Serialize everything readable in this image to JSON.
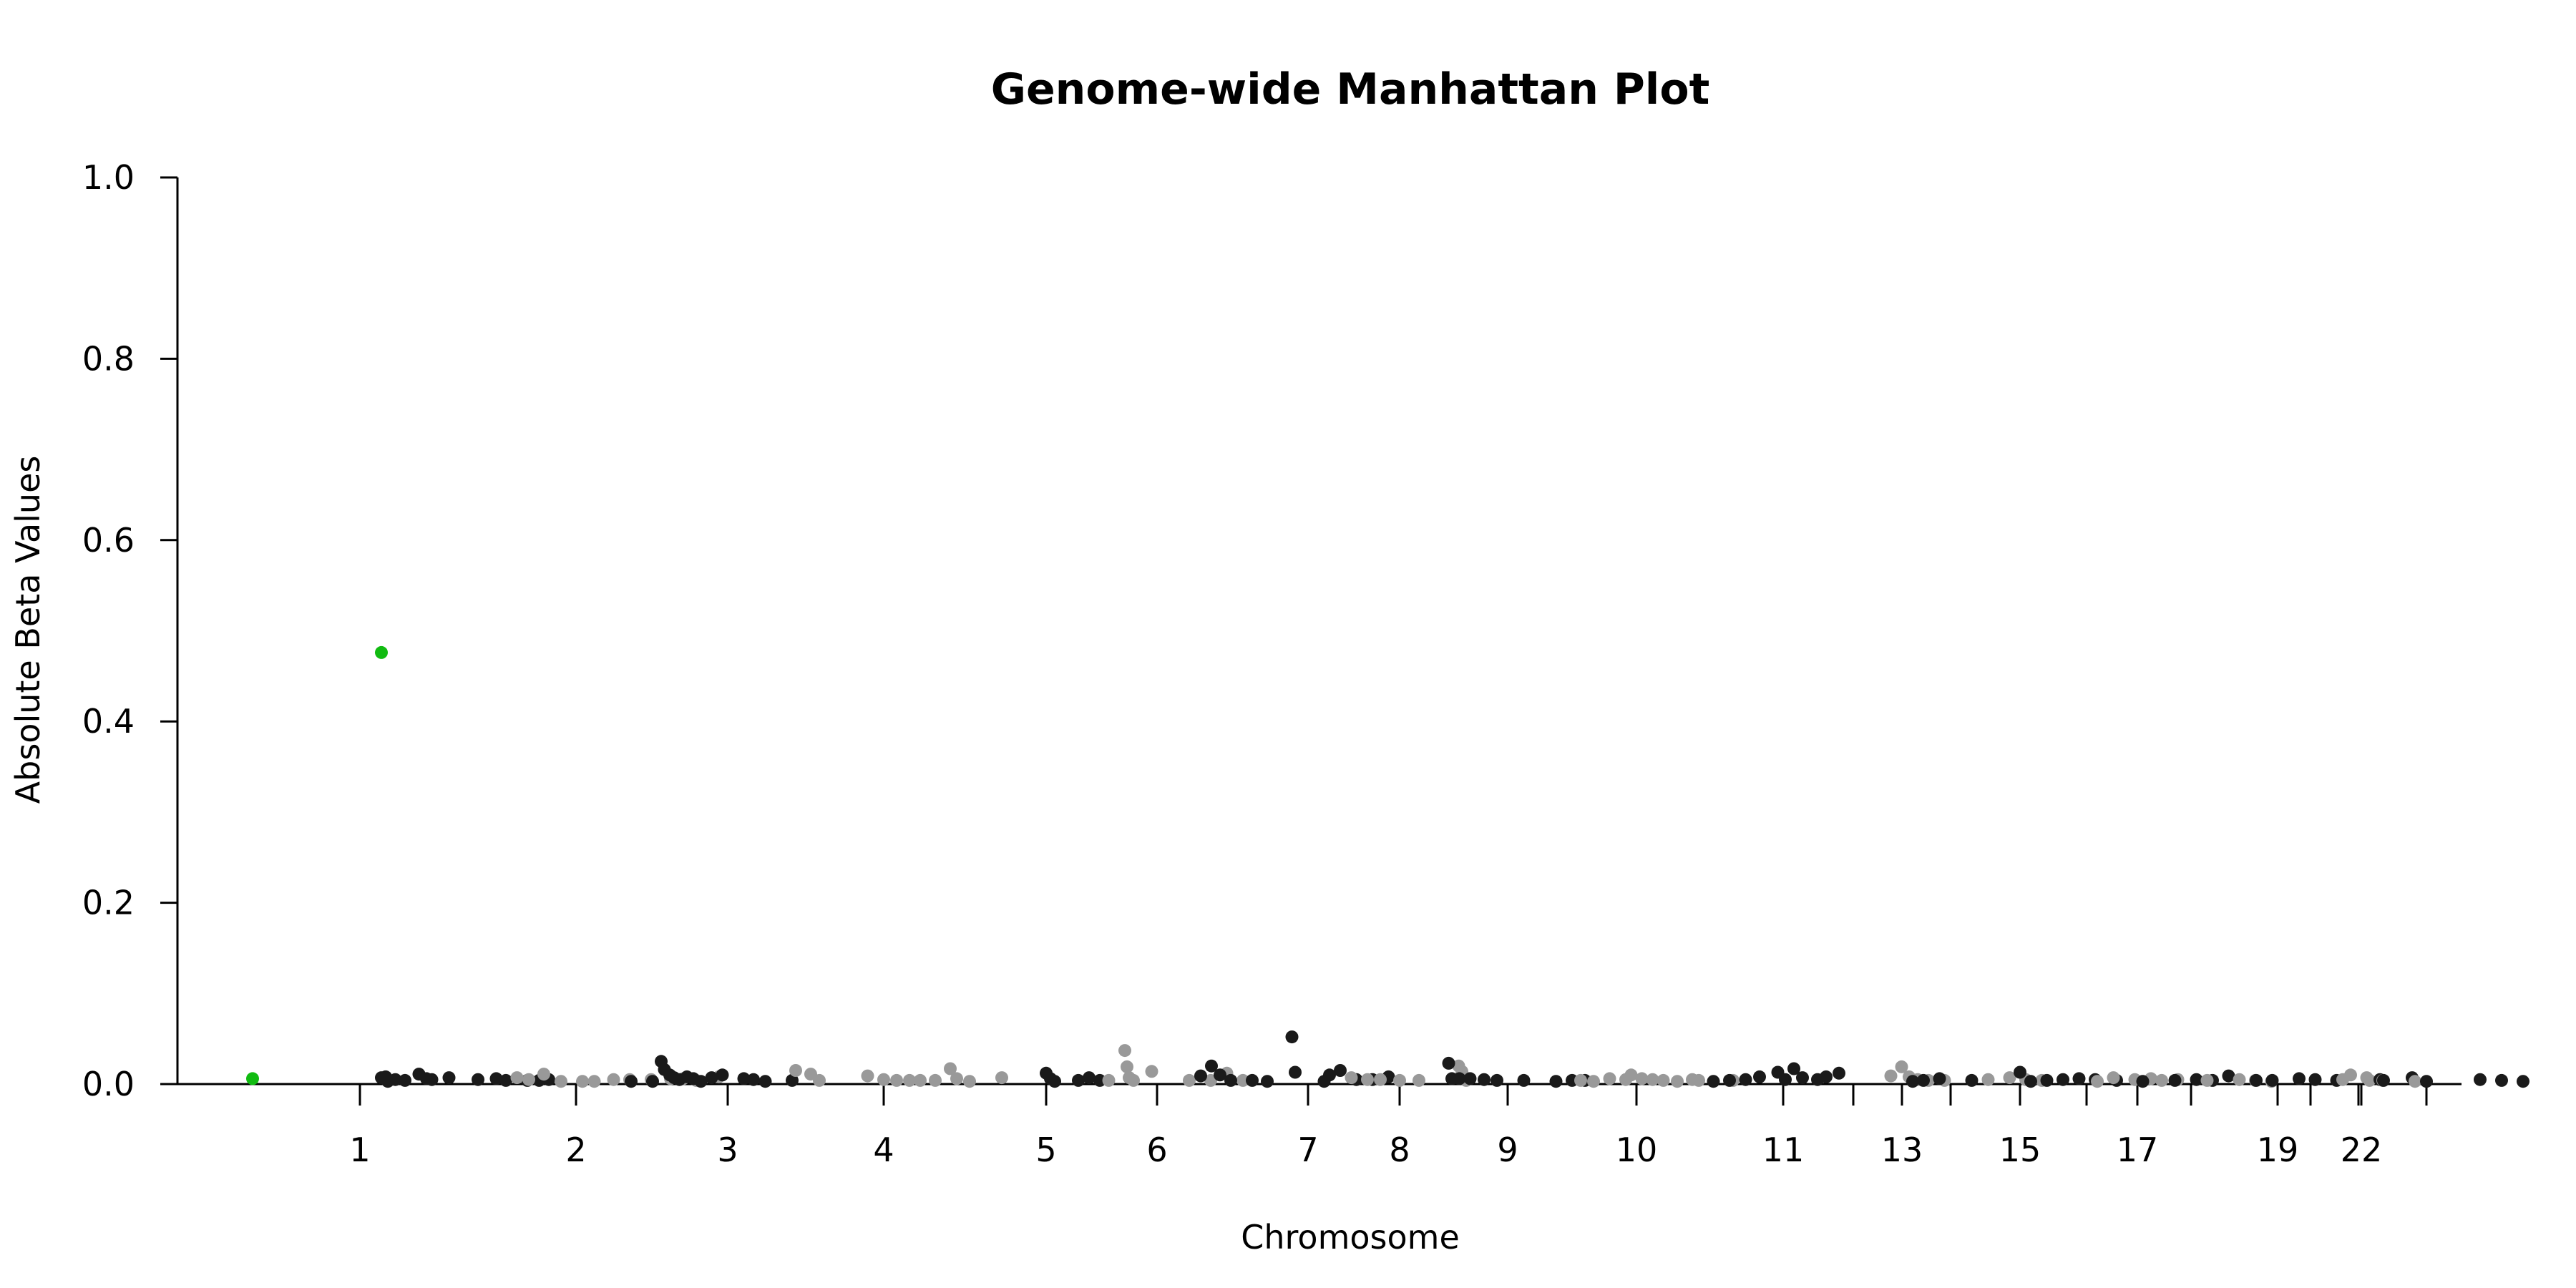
{
  "chart_data": {
    "type": "scatter",
    "title": "Genome-wide Manhattan Plot",
    "xlabel": "Chromosome",
    "ylabel": "Absolute Beta Values",
    "ylim": [
      0,
      1.0
    ],
    "y_ticks": [
      "0.0",
      "0.2",
      "0.4",
      "0.6",
      "0.8",
      "1.0"
    ],
    "x_tick_labels": [
      "1",
      "2",
      "3",
      "4",
      "5",
      "6",
      "7",
      "8",
      "9",
      "10",
      "11",
      "13",
      "15",
      "17",
      "19",
      "22"
    ],
    "x_ticks": [
      {
        "chr": "1",
        "label": "1"
      },
      {
        "chr": "2",
        "label": "2"
      },
      {
        "chr": "3",
        "label": "3"
      },
      {
        "chr": "4",
        "label": "4"
      },
      {
        "chr": "5",
        "label": "5"
      },
      {
        "chr": "6",
        "label": "6"
      },
      {
        "chr": "7",
        "label": "7"
      },
      {
        "chr": "8",
        "label": "8"
      },
      {
        "chr": "9",
        "label": "9"
      },
      {
        "chr": "10",
        "label": "10"
      },
      {
        "chr": "11",
        "label": "11"
      },
      {
        "chr": "12",
        "label": ""
      },
      {
        "chr": "13",
        "label": "13"
      },
      {
        "chr": "14",
        "label": ""
      },
      {
        "chr": "15",
        "label": "15"
      },
      {
        "chr": "16",
        "label": ""
      },
      {
        "chr": "17",
        "label": "17"
      },
      {
        "chr": "18",
        "label": ""
      },
      {
        "chr": "19",
        "label": "19"
      },
      {
        "chr": "20",
        "label": ""
      },
      {
        "chr": "21",
        "label": ""
      },
      {
        "chr": "22",
        "label": "22"
      },
      {
        "chr": "X",
        "label": ""
      }
    ],
    "colors": {
      "odd": "#1a1a1a",
      "even": "#999999",
      "highlight": "#11bb11"
    },
    "grid": false,
    "legend": "none",
    "series": [
      {
        "chr": "1",
        "points": [
          [
            0.2,
            0.476
          ],
          [
            0.2,
            0.007
          ],
          [
            0.24,
            0.008
          ],
          [
            0.26,
            0.003
          ],
          [
            0.33,
            0.005
          ],
          [
            0.42,
            0.004
          ],
          [
            0.55,
            0.011
          ],
          [
            0.62,
            0.006
          ],
          [
            0.67,
            0.005
          ]
        ]
      },
      {
        "chr": "1b",
        "points": [
          [
            0.83,
            0.007
          ],
          [
            1.1,
            0.005
          ],
          [
            1.27,
            0.006
          ],
          [
            1.36,
            0.004
          ],
          [
            1.56,
            0.004
          ],
          [
            1.67,
            0.004
          ],
          [
            1.76,
            0.005
          ]
        ]
      },
      {
        "chr": "2",
        "points": [
          [
            -0.55,
            0.007
          ],
          [
            -0.44,
            0.005
          ],
          [
            -0.3,
            0.011
          ],
          [
            -0.14,
            0.003
          ],
          [
            0.06,
            0.003
          ],
          [
            0.17,
            0.003
          ],
          [
            0.35,
            0.005
          ],
          [
            0.5,
            0.005
          ],
          [
            0.7,
            0.005
          ],
          [
            0.88,
            0.006
          ],
          [
            1.0,
            0.006
          ],
          [
            1.12,
            0.004
          ],
          [
            1.33,
            0.008
          ]
        ]
      },
      {
        "chr": "3",
        "points": [
          [
            -0.9,
            0.003
          ],
          [
            -0.7,
            0.003
          ],
          [
            -0.62,
            0.025
          ],
          [
            -0.59,
            0.016
          ],
          [
            -0.54,
            0.01
          ],
          [
            -0.5,
            0.007
          ],
          [
            -0.45,
            0.005
          ],
          [
            -0.38,
            0.008
          ],
          [
            -0.32,
            0.006
          ],
          [
            -0.25,
            0.003
          ],
          [
            -0.15,
            0.007
          ],
          [
            -0.05,
            0.01
          ],
          [
            0.15,
            0.006
          ],
          [
            0.24,
            0.005
          ],
          [
            0.35,
            0.003
          ],
          [
            0.6,
            0.004
          ]
        ]
      },
      {
        "chr": "4",
        "points": [
          [
            -0.82,
            0.015
          ],
          [
            -0.68,
            0.011
          ],
          [
            -0.6,
            0.004
          ],
          [
            -0.15,
            0.009
          ],
          [
            0.0,
            0.005
          ],
          [
            0.12,
            0.004
          ],
          [
            0.24,
            0.004
          ],
          [
            0.34,
            0.004
          ],
          [
            0.48,
            0.004
          ],
          [
            0.62,
            0.017
          ],
          [
            0.68,
            0.006
          ],
          [
            0.8,
            0.003
          ],
          [
            1.1,
            0.007
          ]
        ]
      },
      {
        "chr": "5",
        "points": [
          [
            0.0,
            0.012
          ],
          [
            0.04,
            0.006
          ],
          [
            0.08,
            0.003
          ],
          [
            0.3,
            0.004
          ],
          [
            0.4,
            0.007
          ],
          [
            0.5,
            0.004
          ]
        ]
      },
      {
        "chr": "6",
        "points": [
          [
            -0.45,
            0.004
          ],
          [
            -0.3,
            0.037
          ],
          [
            -0.28,
            0.019
          ],
          [
            -0.26,
            0.007
          ],
          [
            -0.22,
            0.004
          ],
          [
            -0.05,
            0.014
          ],
          [
            0.3,
            0.004
          ],
          [
            0.5,
            0.004
          ],
          [
            0.65,
            0.012
          ],
          [
            0.8,
            0.004
          ]
        ]
      },
      {
        "chr": "7",
        "points": [
          [
            -1.0,
            0.009
          ],
          [
            -0.9,
            0.02
          ],
          [
            -0.82,
            0.01
          ],
          [
            -0.72,
            0.004
          ],
          [
            -0.52,
            0.004
          ],
          [
            -0.38,
            0.003
          ],
          [
            -0.15,
            0.052
          ],
          [
            -0.12,
            0.013
          ],
          [
            0.15,
            0.003
          ],
          [
            0.2,
            0.01
          ],
          [
            0.3,
            0.015
          ],
          [
            0.45,
            0.005
          ],
          [
            0.6,
            0.005
          ],
          [
            0.75,
            0.008
          ]
        ]
      },
      {
        "chr": "8",
        "points": [
          [
            -0.45,
            0.007
          ],
          [
            -0.3,
            0.005
          ],
          [
            -0.18,
            0.005
          ],
          [
            0.0,
            0.004
          ],
          [
            0.18,
            0.004
          ],
          [
            0.55,
            0.02
          ],
          [
            0.58,
            0.014
          ],
          [
            0.6,
            0.008
          ],
          [
            0.62,
            0.004
          ]
        ]
      },
      {
        "chr": "9",
        "points": [
          [
            -0.55,
            0.023
          ],
          [
            -0.52,
            0.006
          ],
          [
            -0.45,
            0.006
          ],
          [
            -0.35,
            0.006
          ],
          [
            -0.22,
            0.005
          ],
          [
            -0.1,
            0.004
          ],
          [
            0.15,
            0.004
          ],
          [
            0.45,
            0.003
          ],
          [
            0.6,
            0.004
          ],
          [
            0.72,
            0.004
          ]
        ]
      },
      {
        "chr": "10",
        "points": [
          [
            -0.52,
            0.004
          ],
          [
            -0.4,
            0.003
          ],
          [
            -0.25,
            0.006
          ],
          [
            -0.1,
            0.005
          ],
          [
            -0.05,
            0.01
          ],
          [
            0.05,
            0.006
          ],
          [
            0.15,
            0.005
          ],
          [
            0.25,
            0.004
          ],
          [
            0.38,
            0.003
          ],
          [
            0.52,
            0.005
          ],
          [
            0.58,
            0.004
          ],
          [
            0.9,
            0.004
          ]
        ]
      },
      {
        "chr": "11",
        "points": [
          [
            -0.65,
            0.003
          ],
          [
            -0.5,
            0.004
          ],
          [
            -0.35,
            0.005
          ],
          [
            -0.22,
            0.008
          ],
          [
            -0.05,
            0.013
          ],
          [
            0.02,
            0.005
          ],
          [
            0.1,
            0.017
          ],
          [
            0.18,
            0.007
          ],
          [
            0.32,
            0.005
          ],
          [
            0.4,
            0.008
          ],
          [
            0.52,
            0.012
          ]
        ]
      },
      {
        "chr": "12",
        "points": [
          [
            0.35,
            0.009
          ],
          [
            0.45,
            0.019
          ],
          [
            0.52,
            0.008
          ],
          [
            0.6,
            0.005
          ],
          [
            0.7,
            0.004
          ],
          [
            0.85,
            0.004
          ]
        ]
      },
      {
        "chr": "13",
        "points": [
          [
            0.1,
            0.003
          ],
          [
            0.2,
            0.004
          ],
          [
            0.35,
            0.006
          ],
          [
            0.65,
            0.004
          ]
        ]
      },
      {
        "chr": "14",
        "points": [
          [
            0.35,
            0.005
          ],
          [
            0.55,
            0.007
          ],
          [
            0.7,
            0.005
          ],
          [
            0.85,
            0.004
          ]
        ]
      },
      {
        "chr": "15",
        "points": [
          [
            0.0,
            0.013
          ],
          [
            0.1,
            0.003
          ],
          [
            0.25,
            0.004
          ],
          [
            0.4,
            0.005
          ],
          [
            0.55,
            0.006
          ],
          [
            0.7,
            0.005
          ],
          [
            0.9,
            0.004
          ]
        ]
      },
      {
        "chr": "16",
        "points": [
          [
            0.1,
            0.003
          ],
          [
            0.25,
            0.007
          ],
          [
            0.45,
            0.005
          ],
          [
            0.6,
            0.006
          ],
          [
            0.7,
            0.004
          ],
          [
            0.85,
            0.005
          ]
        ]
      },
      {
        "chr": "17",
        "points": [
          [
            0.05,
            0.003
          ],
          [
            0.35,
            0.004
          ],
          [
            0.55,
            0.005
          ],
          [
            0.7,
            0.004
          ],
          [
            0.85,
            0.009
          ]
        ]
      },
      {
        "chr": "18",
        "points": [
          [
            0.15,
            0.004
          ],
          [
            0.45,
            0.005
          ],
          [
            0.6,
            0.004
          ],
          [
            0.75,
            0.003
          ]
        ]
      },
      {
        "chr": "19",
        "points": [
          [
            -0.2,
            0.004
          ],
          [
            -0.05,
            0.004
          ],
          [
            0.2,
            0.006
          ],
          [
            0.35,
            0.005
          ],
          [
            0.55,
            0.004
          ]
        ]
      },
      {
        "chr": "20",
        "points": [
          [
            0.3,
            0.005
          ],
          [
            0.55,
            0.004
          ]
        ]
      },
      {
        "chr": "21",
        "points": [
          [
            0.2,
            0.005
          ],
          [
            0.5,
            0.007
          ]
        ]
      },
      {
        "chr": "22",
        "points": [
          [
            -0.1,
            0.01
          ],
          [
            0.05,
            0.007
          ],
          [
            0.2,
            0.004
          ],
          [
            0.5,
            0.003
          ]
        ]
      },
      {
        "chr": "X",
        "points": [
          [
            -0.4,
            0.004
          ],
          [
            0.0,
            0.003
          ],
          [
            0.5,
            0.005
          ],
          [
            0.7,
            0.004
          ],
          [
            0.9,
            0.003
          ]
        ]
      }
    ]
  }
}
